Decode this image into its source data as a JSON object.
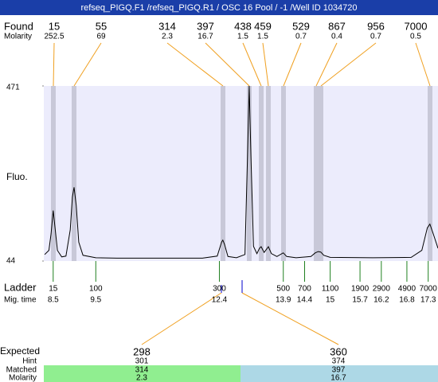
{
  "header": {
    "title": "refseq_PIGQ.F1 /refseq_PIGQ.R1 / OSC 16 Pool / -1 /Well ID 1034720"
  },
  "found": {
    "label": "Found",
    "molarity_label": "Molarity",
    "sizes": [
      15,
      55,
      314,
      397,
      438,
      459,
      529,
      867,
      956,
      7000
    ],
    "molarities": [
      252.5,
      69,
      2.3,
      16.7,
      1.5,
      1.5,
      0.7,
      0.4,
      0.7,
      0.5
    ]
  },
  "plot": {
    "type": "line",
    "y_label": "Fluo.",
    "xlim": [
      8.28,
      17.53
    ],
    "ylim": [
      44,
      471
    ],
    "yticks": [
      44,
      471
    ],
    "color": "#000000",
    "trace": {
      "x": [
        8.3,
        8.4,
        8.45,
        8.5,
        8.55,
        8.6,
        8.7,
        8.8,
        8.9,
        8.95,
        8.99,
        9.04,
        9.1,
        9.2,
        9.5,
        10,
        11,
        12,
        12.35,
        12.45,
        12.48,
        12.52,
        12.6,
        12.8,
        13.0,
        13.06,
        13.1,
        13.14,
        13.2,
        13.28,
        13.34,
        13.38,
        13.45,
        13.55,
        13.62,
        13.75,
        13.9,
        13.98,
        14.2,
        14.55,
        14.65,
        14.72,
        14.78,
        14.85,
        15,
        16,
        16.9,
        17.15,
        17.28,
        17.34,
        17.42,
        17.53
      ],
      "y": [
        60,
        70,
        110,
        167,
        120,
        70,
        54,
        56,
        120,
        200,
        224,
        180,
        90,
        58,
        52,
        51,
        51,
        51,
        56,
        90,
        95,
        85,
        55,
        52,
        60,
        300,
        471,
        300,
        80,
        62,
        75,
        79,
        65,
        79,
        62,
        55,
        64,
        55,
        52,
        55,
        64,
        67,
        66,
        58,
        53,
        52,
        53,
        70,
        125,
        134,
        110,
        75
      ]
    }
  },
  "ladder": {
    "label": "Ladder",
    "mig_label": "Mig. time",
    "sizes": [
      15,
      100,
      300,
      500,
      700,
      1100,
      1900,
      2900,
      4900,
      7000
    ],
    "mig_times": [
      8.5,
      9.5,
      12.4,
      13.9,
      14.4,
      15,
      15.7,
      16.2,
      16.8,
      17.3
    ]
  },
  "expected": {
    "label": "Expected",
    "hint_label": "Hint",
    "matched_label": "Matched",
    "molarity_label": "Molarity",
    "sizes": [
      298,
      360
    ],
    "hints": [
      301,
      374
    ],
    "matched": [
      314,
      397
    ],
    "molarities": [
      2.3,
      16.7
    ]
  }
}
